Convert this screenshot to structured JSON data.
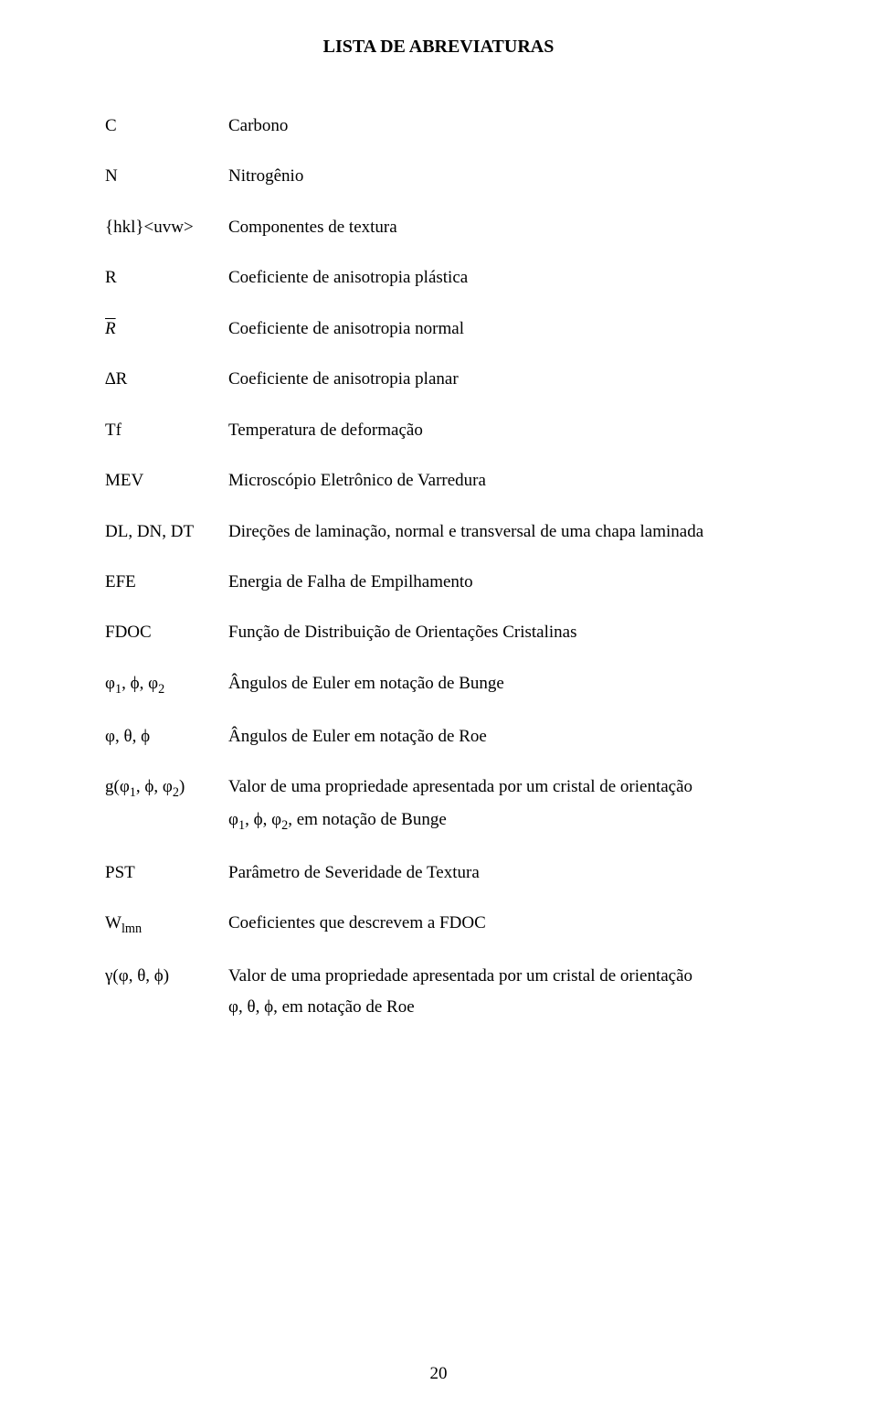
{
  "title": "LISTA DE ABREVIATURAS",
  "page_number": "20",
  "entries": [
    {
      "term": "C",
      "def": "Carbono"
    },
    {
      "term": "N",
      "def": "Nitrogênio"
    },
    {
      "term": "{hkl}<uvw>",
      "def": "Componentes de textura"
    },
    {
      "term": "R",
      "def": "Coeficiente de anisotropia plástica"
    },
    {
      "term_html": "<span class=\"overline\">R</span>",
      "def": "Coeficiente de anisotropia normal"
    },
    {
      "term": "∆R",
      "def": "Coeficiente de anisotropia planar"
    },
    {
      "term": "Tf",
      "def": "Temperatura de deformação"
    },
    {
      "term": "MEV",
      "def": "Microscópio Eletrônico de Varredura"
    },
    {
      "term": "DL, DN, DT",
      "def": "Direções de laminação, normal e transversal de uma chapa laminada"
    },
    {
      "term": "EFE",
      "def": "Energia de Falha de Empilhamento"
    },
    {
      "term": "FDOC",
      "def": "Função de Distribuição de Orientações Cristalinas"
    },
    {
      "term_html": "φ<sub>1</sub>, ϕ, φ<sub>2</sub>",
      "def": "Ângulos de Euler em notação de Bunge"
    },
    {
      "term": "φ, θ, ϕ",
      "def": "Ângulos de Euler em notação de Roe"
    },
    {
      "term_html": "g(φ<sub>1</sub>, ϕ, φ<sub>2</sub>)",
      "def": "Valor de uma propriedade apresentada por um cristal de orientação",
      "def_line2_html": "φ<sub>1</sub>, ϕ, φ<sub>2</sub>, em notação de Bunge"
    },
    {
      "group": [
        {
          "term": "PST",
          "def": "Parâmetro de Severidade de Textura"
        },
        {
          "term_html": "W<sub>lmn</sub>",
          "def": "Coeficientes que descrevem a FDOC"
        }
      ]
    },
    {
      "term": "γ(φ, θ, ϕ)",
      "def": "Valor de uma propriedade apresentada por um cristal de orientação",
      "def_line2": "φ, θ, ϕ, em notação de Roe"
    }
  ]
}
